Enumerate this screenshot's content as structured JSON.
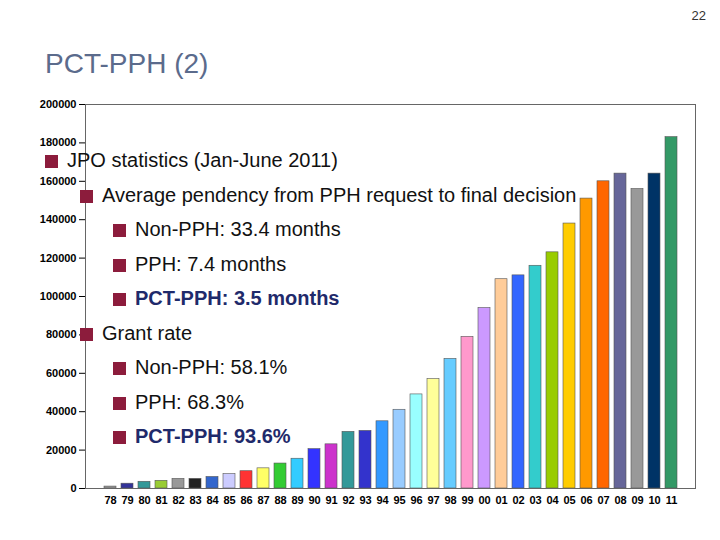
{
  "page_number": "22",
  "title": "PCT-PPH (2)",
  "bullets": [
    {
      "text": "JPO statistics (Jan-June 2011)",
      "children": [
        {
          "text": "Average pendency from PPH request to final decision",
          "children": [
            {
              "text": "Non-PPH: 33.4 months",
              "emphasis": false
            },
            {
              "text": "PPH: 7.4 months",
              "emphasis": false
            },
            {
              "text": "PCT-PPH: 3.5 months",
              "emphasis": true
            }
          ]
        },
        {
          "text": "Grant rate",
          "children": [
            {
              "text": "Non-PPH: 58.1%",
              "emphasis": false
            },
            {
              "text": "PPH: 68.3%",
              "emphasis": false
            },
            {
              "text": "PCT-PPH: 93.6%",
              "emphasis": true
            }
          ]
        }
      ]
    }
  ],
  "chart_data": {
    "type": "bar",
    "categories": [
      "78",
      "79",
      "80",
      "81",
      "82",
      "83",
      "84",
      "85",
      "86",
      "87",
      "88",
      "89",
      "90",
      "91",
      "92",
      "93",
      "94",
      "95",
      "96",
      "97",
      "98",
      "99",
      "00",
      "01",
      "02",
      "03",
      "04",
      "05",
      "06",
      "07",
      "08",
      "09",
      "10",
      "11"
    ],
    "values": [
      1000,
      2500,
      3500,
      4000,
      5000,
      5000,
      6000,
      7500,
      9000,
      10500,
      13000,
      15500,
      20500,
      23000,
      29500,
      30000,
      35000,
      41000,
      49000,
      57000,
      67500,
      79000,
      94000,
      109000,
      111000,
      116000,
      123000,
      138000,
      151000,
      160000,
      164000,
      156000,
      164000,
      183000
    ],
    "colors": [
      "#999999",
      "#333399",
      "#339999",
      "#99cc33",
      "#999999",
      "#222222",
      "#3366cc",
      "#ccccff",
      "#ff3333",
      "#ffff66",
      "#33cc33",
      "#33ccff",
      "#3333ff",
      "#cc33cc",
      "#339999",
      "#3333cc",
      "#3399ff",
      "#99ccff",
      "#99ffff",
      "#ffff99",
      "#66ccff",
      "#ff99cc",
      "#cc99ff",
      "#ffcc99",
      "#3366ff",
      "#33cccc",
      "#99cc00",
      "#ffcc00",
      "#ff9900",
      "#ff6600",
      "#666699",
      "#999999",
      "#003366",
      "#339966"
    ],
    "ylim": [
      0,
      200000
    ],
    "yticks": [
      0,
      20000,
      40000,
      60000,
      80000,
      100000,
      120000,
      140000,
      160000,
      180000,
      200000
    ],
    "grid": false
  }
}
